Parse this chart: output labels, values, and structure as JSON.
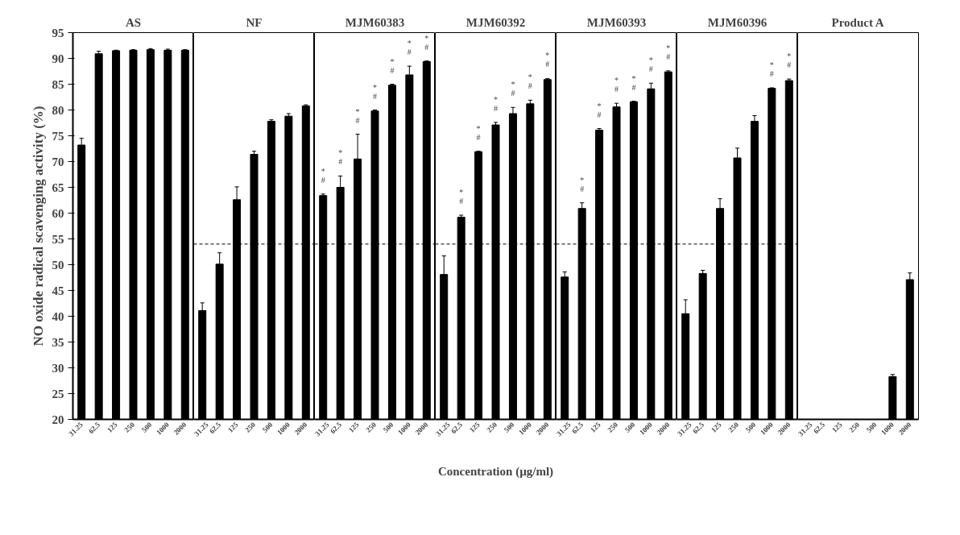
{
  "chart_data": [
    {
      "type": "bar",
      "title": "AS",
      "ylabel": "NO oxide radical scavenging activity (%)",
      "categories": [
        "31.25",
        "62.5",
        "125",
        "250",
        "500",
        "1000",
        "2000"
      ],
      "values": [
        73.2,
        90.9,
        91.5,
        91.6,
        91.7,
        91.6,
        91.6
      ],
      "errors": [
        1.3,
        0.5,
        0.1,
        0.1,
        0.2,
        0.2,
        0.1
      ],
      "color": "#000000",
      "ylim": [
        20,
        95
      ],
      "yticks": [
        20,
        25,
        30,
        35,
        40,
        45,
        50,
        55,
        60,
        65,
        70,
        75,
        80,
        85,
        90,
        95
      ]
    },
    {
      "type": "bar",
      "title": "NF",
      "categories": [
        "31.25",
        "62.5",
        "125",
        "250",
        "500",
        "1000",
        "2000"
      ],
      "values": [
        41.1,
        50.1,
        62.6,
        71.4,
        77.8,
        78.8,
        80.8
      ],
      "errors": [
        1.5,
        2.2,
        2.5,
        0.6,
        0.3,
        0.5,
        0.2
      ],
      "color": "#000000",
      "ylim": [
        20,
        95
      ],
      "tick_labels": "x",
      "ref_lines": [
        {
          "axis": "y",
          "value": 54,
          "color": "#000000",
          "line_style": "dashed"
        }
      ]
    },
    {
      "type": "bar",
      "title": "MJM60383",
      "categories": [
        "31.25",
        "62.5",
        "125",
        "250",
        "500",
        "1000",
        "2000"
      ],
      "values": [
        63.4,
        65.0,
        70.5,
        79.8,
        84.8,
        86.8,
        89.4
      ],
      "errors": [
        0.3,
        2.2,
        4.8,
        0.2,
        0.2,
        1.7,
        0.1
      ],
      "color": "#000000",
      "ylim": [
        20,
        95
      ],
      "tick_labels": "x",
      "ref_lines": [
        {
          "axis": "y",
          "value": 54,
          "color": "#000000",
          "line_style": "dashed"
        }
      ],
      "annotations": [
        {
          "text": "#",
          "x": "31.25",
          "y": 63.7
        },
        {
          "text": "*",
          "x": "31.25",
          "y": 63.7
        },
        {
          "text": "#",
          "x": "62.5",
          "y": 67.2
        },
        {
          "text": "*",
          "x": "62.5",
          "y": 67.2
        },
        {
          "text": "#",
          "x": "125",
          "y": 75.3
        },
        {
          "text": "*",
          "x": "125",
          "y": 75.3
        },
        {
          "text": "#",
          "x": "250",
          "y": 80.0
        },
        {
          "text": "*",
          "x": "250",
          "y": 80.0
        },
        {
          "text": "#",
          "x": "500",
          "y": 85.0
        },
        {
          "text": "*",
          "x": "500",
          "y": 85.0
        },
        {
          "text": "#",
          "x": "1000",
          "y": 88.5
        },
        {
          "text": "*",
          "x": "1000",
          "y": 88.5
        },
        {
          "text": "#",
          "x": "2000",
          "y": 89.5
        },
        {
          "text": "*",
          "x": "2000",
          "y": 89.5
        }
      ]
    },
    {
      "type": "bar",
      "title": "MJM60392",
      "xlabel": "Concentration (µg/ml)",
      "categories": [
        "31.25",
        "62.5",
        "125",
        "250",
        "500",
        "1000",
        "2000"
      ],
      "values": [
        48.1,
        59.2,
        71.9,
        77.1,
        79.3,
        81.2,
        85.9
      ],
      "errors": [
        3.6,
        0.4,
        0.1,
        0.5,
        1.2,
        0.7,
        0.2
      ],
      "color": "#000000",
      "ylim": [
        20,
        95
      ],
      "tick_labels": "x",
      "ref_lines": [
        {
          "axis": "y",
          "value": 54,
          "color": "#000000",
          "line_style": "dashed"
        }
      ],
      "annotations": [
        {
          "text": "#",
          "x": "62.5",
          "y": 59.6
        },
        {
          "text": "*",
          "x": "62.5",
          "y": 59.6
        },
        {
          "text": "#",
          "x": "125",
          "y": 72.0
        },
        {
          "text": "*",
          "x": "125",
          "y": 72.0
        },
        {
          "text": "#",
          "x": "250",
          "y": 77.6
        },
        {
          "text": "*",
          "x": "250",
          "y": 77.6
        },
        {
          "text": "#",
          "x": "500",
          "y": 80.5
        },
        {
          "text": "*",
          "x": "500",
          "y": 80.5
        },
        {
          "text": "#",
          "x": "1000",
          "y": 81.9
        },
        {
          "text": "*",
          "x": "1000",
          "y": 81.9
        },
        {
          "text": "#",
          "x": "2000",
          "y": 86.1
        },
        {
          "text": "*",
          "x": "2000",
          "y": 86.1
        }
      ]
    },
    {
      "type": "bar",
      "title": "MJM60393",
      "categories": [
        "31.25",
        "62.5",
        "125",
        "250",
        "500",
        "1000",
        "2000"
      ],
      "values": [
        47.6,
        60.9,
        76.1,
        80.6,
        81.6,
        84.1,
        87.4
      ],
      "errors": [
        1.0,
        1.1,
        0.3,
        0.7,
        0.1,
        1.1,
        0.2
      ],
      "color": "#000000",
      "ylim": [
        20,
        95
      ],
      "tick_labels": "x",
      "ref_lines": [
        {
          "axis": "y",
          "value": 54,
          "color": "#000000",
          "line_style": "dashed"
        }
      ],
      "annotations": [
        {
          "text": "#",
          "x": "62.5",
          "y": 62.0
        },
        {
          "text": "*",
          "x": "62.5",
          "y": 62.0
        },
        {
          "text": "#",
          "x": "125",
          "y": 76.4
        },
        {
          "text": "*",
          "x": "125",
          "y": 76.4
        },
        {
          "text": "#",
          "x": "250",
          "y": 81.3
        },
        {
          "text": "*",
          "x": "250",
          "y": 81.3
        },
        {
          "text": "#",
          "x": "500",
          "y": 81.7
        },
        {
          "text": "*",
          "x": "500",
          "y": 81.7
        },
        {
          "text": "#",
          "x": "1000",
          "y": 85.2
        },
        {
          "text": "*",
          "x": "1000",
          "y": 85.2
        },
        {
          "text": "#",
          "x": "2000",
          "y": 87.6
        },
        {
          "text": "*",
          "x": "2000",
          "y": 87.6
        }
      ]
    },
    {
      "type": "bar",
      "title": "MJM60396",
      "categories": [
        "31.25",
        "62.5",
        "125",
        "250",
        "500",
        "1000",
        "2000"
      ],
      "values": [
        40.5,
        48.3,
        60.9,
        70.7,
        77.8,
        84.2,
        85.7
      ],
      "errors": [
        2.7,
        0.6,
        1.9,
        1.9,
        1.1,
        0.1,
        0.3
      ],
      "color": "#000000",
      "ylim": [
        20,
        95
      ],
      "tick_labels": "x",
      "ref_lines": [
        {
          "axis": "y",
          "value": 54,
          "color": "#000000",
          "line_style": "dashed"
        }
      ],
      "annotations": [
        {
          "text": "#",
          "x": "1000",
          "y": 84.3
        },
        {
          "text": "*",
          "x": "1000",
          "y": 84.3
        },
        {
          "text": "#",
          "x": "2000",
          "y": 86.0
        },
        {
          "text": "*",
          "x": "2000",
          "y": 86.0
        }
      ]
    },
    {
      "type": "bar",
      "title": "Product A",
      "categories": [
        "31.25",
        "62.5",
        "125",
        "250",
        "500",
        "1000",
        "2000"
      ],
      "values": [
        null,
        null,
        null,
        null,
        null,
        28.3,
        47.1
      ],
      "errors": [
        null,
        null,
        null,
        null,
        null,
        0.4,
        1.3
      ],
      "color": "#000000",
      "ylim": [
        20,
        95
      ],
      "tick_labels": "x"
    }
  ]
}
